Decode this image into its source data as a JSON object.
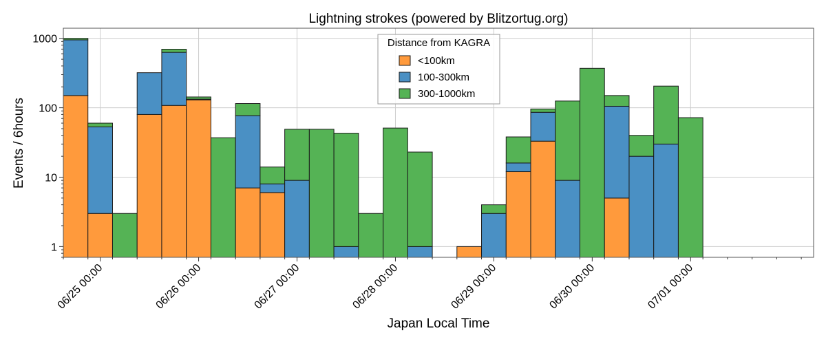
{
  "colors": {
    "<100km": "#ff9a3c",
    "100-300km": "#4a90c4",
    "300-1000km": "#55b355",
    "edge": "#1a1a1a",
    "grid": "#cccccc"
  },
  "chart_data": {
    "type": "bar",
    "stacked": true,
    "title": "Lightning strokes (powered by Blitzortug.org)",
    "xlabel": "Japan Local Time",
    "ylabel": "Events / 6hours",
    "yscale": "log",
    "ylim": [
      0.7,
      1400
    ],
    "grid": true,
    "legend_title": "Distance from KAGRA",
    "legend_position": "top-center",
    "bin_hours": 6,
    "x_range": [
      "06/24 15:00",
      "07/02 06:00"
    ],
    "x_ticks": [
      "06/25 00:00",
      "06/26 00:00",
      "06/27 00:00",
      "06/28 00:00",
      "06/29 00:00",
      "06/30 00:00",
      "07/01 00:00"
    ],
    "y_ticks": [
      1,
      10,
      100,
      1000
    ],
    "y_tick_labels": [
      "1",
      "10",
      "100",
      "1000"
    ],
    "bin_start": [
      "06/24 15:00",
      "06/24 21:00",
      "06/25 03:00",
      "06/25 09:00",
      "06/25 15:00",
      "06/25 21:00",
      "06/26 03:00",
      "06/26 09:00",
      "06/26 15:00",
      "06/26 21:00",
      "06/27 03:00",
      "06/27 09:00",
      "06/27 15:00",
      "06/27 21:00",
      "06/28 03:00",
      "06/28 09:00",
      "06/28 15:00",
      "06/28 21:00",
      "06/29 03:00",
      "06/29 09:00",
      "06/29 15:00",
      "06/29 21:00",
      "06/30 03:00",
      "06/30 09:00",
      "06/30 15:00",
      "06/30 21:00",
      "07/01 03:00"
    ],
    "series": [
      {
        "name": "<100km",
        "values": [
          150,
          3,
          0,
          80,
          108,
          130,
          0,
          7,
          6,
          0,
          0,
          0,
          0,
          0,
          0,
          0,
          1,
          0,
          12,
          33,
          0,
          0,
          5,
          0,
          0,
          0,
          0
        ]
      },
      {
        "name": "100-300km",
        "values": [
          800,
          50,
          0,
          240,
          520,
          3,
          0,
          70,
          2,
          9,
          0,
          1,
          0,
          0,
          1,
          0,
          0,
          3,
          4,
          53,
          9,
          0,
          100,
          20,
          30,
          0,
          0
        ]
      },
      {
        "name": "300-1000km",
        "values": [
          50,
          7,
          3,
          0,
          70,
          10,
          37,
          38,
          6,
          40,
          49,
          42,
          3,
          51,
          22,
          0,
          0,
          1,
          22,
          10,
          116,
          370,
          45,
          20,
          175,
          72,
          0
        ]
      }
    ]
  }
}
